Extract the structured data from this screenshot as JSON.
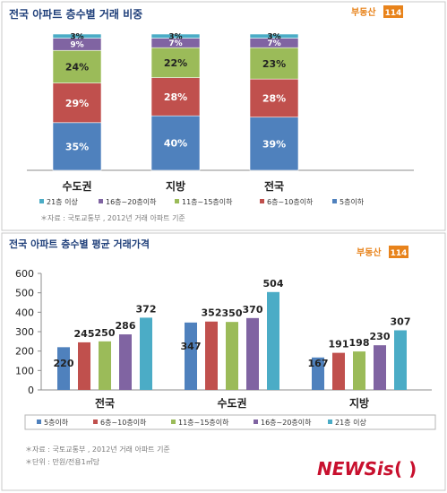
{
  "colors": {
    "s5": "#4f81bd",
    "s6_10": "#c0504d",
    "s11_15": "#9bbb59",
    "s16_20": "#8064a2",
    "s21": "#4bacc6",
    "panel_title": "#1f3f7a",
    "logo_bg": "#e8831b"
  },
  "logo_text": "부동산",
  "logo_badge": "114",
  "watermark": {
    "text": "NEWSis",
    "bracket": "( )"
  },
  "chart_data": [
    {
      "type": "bar",
      "stacked": true,
      "title": "전국 아파트 층수별 거래 비중",
      "categories": [
        "수도권",
        "지방",
        "전국"
      ],
      "series": [
        {
          "name": "5층이하",
          "values": [
            35,
            40,
            39
          ],
          "labels": [
            "35%",
            "40%",
            "39%"
          ]
        },
        {
          "name": "6층~10층이하",
          "values": [
            29,
            28,
            28
          ],
          "labels": [
            "29%",
            "28%",
            "28%"
          ]
        },
        {
          "name": "11층~15층이하",
          "values": [
            24,
            22,
            23
          ],
          "labels": [
            "24%",
            "22%",
            "23%"
          ]
        },
        {
          "name": "16층~20층이하",
          "values": [
            9,
            7,
            7
          ],
          "labels": [
            "9%",
            "7%",
            "7%"
          ]
        },
        {
          "name": "21층 이상",
          "values": [
            3,
            3,
            3
          ],
          "labels": [
            "3%",
            "3%",
            "3%"
          ]
        }
      ],
      "legend_order": [
        "21층 이상",
        "16층~20층이하",
        "11층~15층이하",
        "6층~10층이하",
        "5층이하"
      ],
      "legend_position": "bottom",
      "source": "＊자료 : 국토교통부 , 2012년  거래 아파트 기준"
    },
    {
      "type": "bar",
      "title": "전국 아파트 층수별 평균 거래가격",
      "categories": [
        "전국",
        "수도권",
        "지방"
      ],
      "series": [
        {
          "name": "5층이하",
          "values": [
            220,
            347,
            167
          ]
        },
        {
          "name": "6층~10층이하",
          "values": [
            245,
            352,
            191
          ]
        },
        {
          "name": "11층~15층이하",
          "values": [
            250,
            350,
            198
          ]
        },
        {
          "name": "16층~20층이하",
          "values": [
            286,
            370,
            230
          ]
        },
        {
          "name": "21층 이상",
          "values": [
            372,
            504,
            307
          ]
        }
      ],
      "ylim": [
        0,
        600
      ],
      "yticks": [
        0,
        100,
        200,
        300,
        400,
        500,
        600
      ],
      "grid": false,
      "legend_position": "bottom",
      "notes": [
        "＊자료 : 국토교통부 , 2012년  거래 아파트 기준",
        "＊단위 : 만원/전용1㎡당"
      ]
    }
  ]
}
